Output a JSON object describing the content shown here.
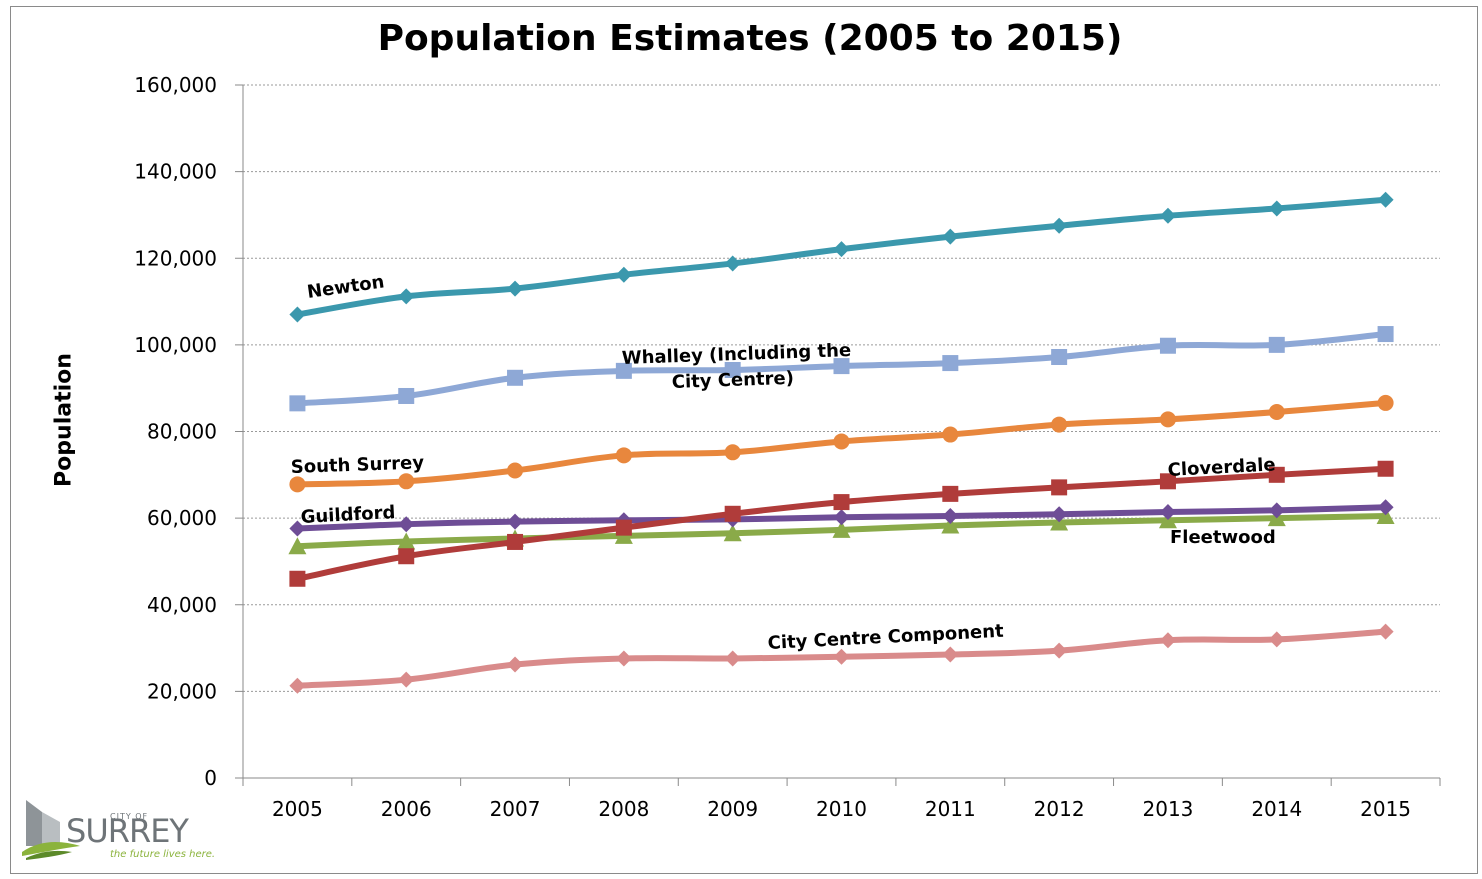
{
  "chart_data": {
    "type": "line",
    "title": "Population Estimates (2005 to 2015)",
    "ylabel": "Population",
    "xlabel": "",
    "ylim": [
      0,
      160000
    ],
    "yticks": [
      0,
      20000,
      40000,
      60000,
      80000,
      100000,
      120000,
      140000,
      160000
    ],
    "ytick_labels": [
      "0",
      "20,000",
      "40,000",
      "60,000",
      "80,000",
      "100,000",
      "120,000",
      "140,000",
      "160,000"
    ],
    "grid": true,
    "categories": [
      "2005",
      "2006",
      "2007",
      "2008",
      "2009",
      "2010",
      "2011",
      "2012",
      "2013",
      "2014",
      "2015"
    ],
    "series": [
      {
        "name": "Newton",
        "color": "#3b98ad",
        "marker": "diamond",
        "values": [
          107000,
          111200,
          113000,
          116200,
          118800,
          122100,
          125000,
          127500,
          129800,
          131500,
          133500
        ]
      },
      {
        "name": "Whalley (Including the City  Centre)",
        "label_lines": [
          "Whalley (Including the",
          "City  Centre)"
        ],
        "color": "#8ea8d6",
        "marker": "square",
        "values": [
          86500,
          88200,
          92400,
          94000,
          94200,
          95100,
          95800,
          97200,
          99800,
          100000,
          102500
        ]
      },
      {
        "name": "South Surrey",
        "color": "#e8873d",
        "marker": "circle",
        "values": [
          67800,
          68500,
          71000,
          74500,
          75200,
          77700,
          79300,
          81600,
          82800,
          84500,
          86600
        ]
      },
      {
        "name": "Cloverdale",
        "color": "#b03c3a",
        "marker": "square",
        "values": [
          46000,
          51200,
          54500,
          57800,
          61000,
          63700,
          65600,
          67100,
          68500,
          70000,
          71400
        ]
      },
      {
        "name": "Guildford",
        "color": "#6e4d96",
        "marker": "diamond",
        "values": [
          57600,
          58600,
          59200,
          59500,
          59700,
          60200,
          60500,
          60900,
          61400,
          61800,
          62500
        ]
      },
      {
        "name": "Fleetwood",
        "color": "#8aaa49",
        "marker": "triangle",
        "values": [
          53500,
          54600,
          55300,
          55900,
          56500,
          57300,
          58300,
          59000,
          59500,
          60000,
          60500
        ]
      },
      {
        "name": "City Centre Component",
        "color": "#d98b8b",
        "marker": "diamond",
        "values": [
          21300,
          22700,
          26200,
          27600,
          27600,
          28000,
          28500,
          29400,
          31800,
          32000,
          33800
        ]
      }
    ]
  },
  "logo": {
    "city_of": "CITY OF",
    "name": "SURREY",
    "tagline": "the future lives here."
  }
}
